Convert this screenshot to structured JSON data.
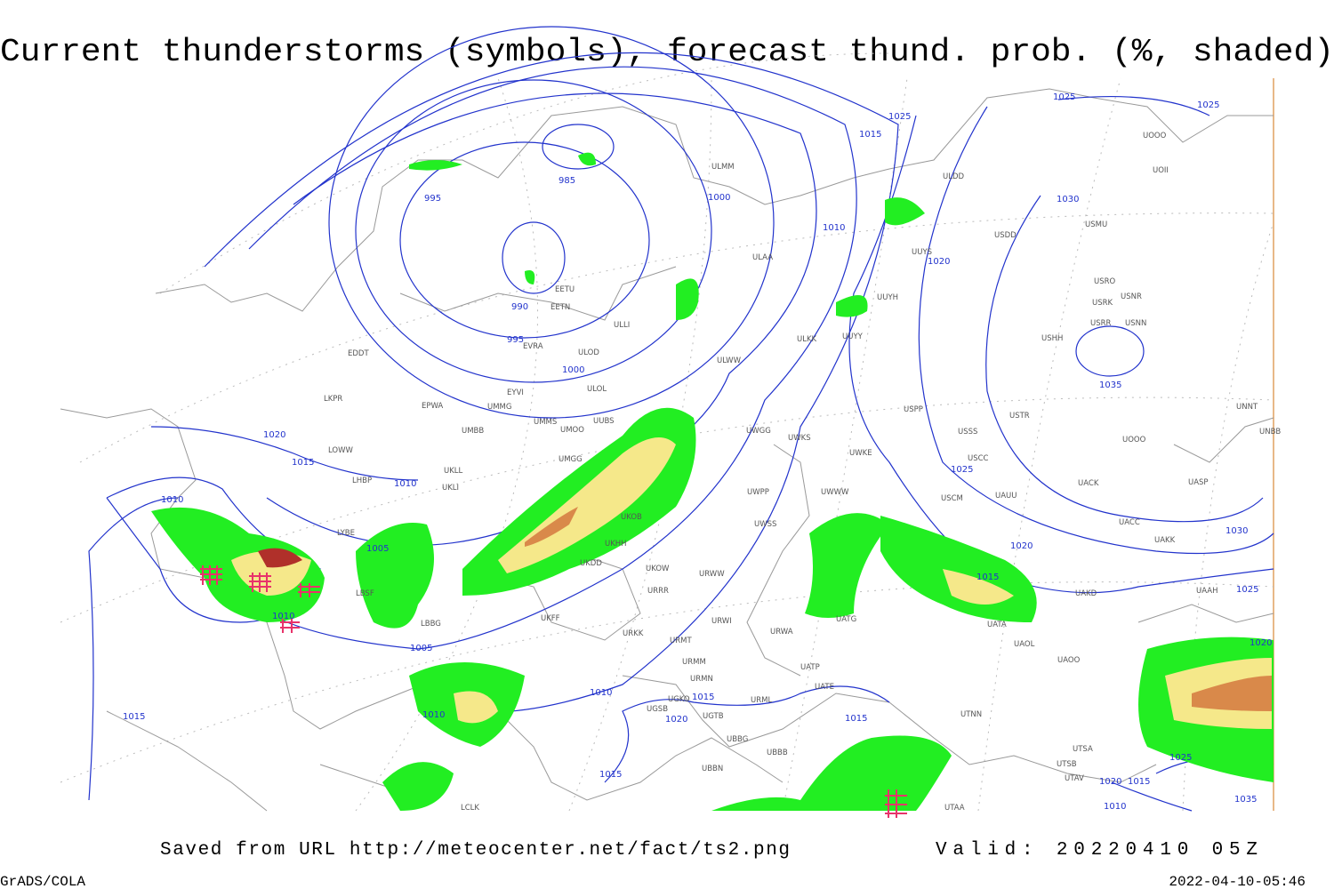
{
  "header": {
    "title": "Current thunderstorms (symbols), forecast thund. prob. (%, shaded)"
  },
  "footer": {
    "source": "Saved from URL http://meteocenter.net/fact/ts2.png",
    "valid": "Valid: 20220410 05Z",
    "credit": "GrADS/COLA",
    "timestamp": "2022-04-10-05:46"
  },
  "map": {
    "isobar_labels": [
      "985",
      "995",
      "990",
      "995",
      "1000",
      "1000",
      "1010",
      "1015",
      "1025",
      "1025",
      "1025",
      "1030",
      "1020",
      "1035",
      "1025",
      "1020",
      "1015",
      "1030",
      "1025",
      "1020",
      "1020",
      "1015",
      "1010",
      "1010",
      "1005",
      "1010",
      "1005",
      "1010",
      "1015",
      "1020",
      "1015",
      "1010",
      "1015",
      "1015",
      "1025",
      "1020",
      "1015",
      "1010",
      "1035"
    ],
    "stations": [
      "ULMM",
      "ULDD",
      "USDD",
      "USMU",
      "UOII",
      "UOOO",
      "ULAA",
      "UUYS",
      "EETU",
      "EETN",
      "UUYH",
      "USRO",
      "USRK",
      "USNR",
      "USRR",
      "USNN",
      "ULLI",
      "ULKK",
      "UUYY",
      "USHH",
      "EVRA",
      "ULOD",
      "EDDT",
      "ULWW",
      "ULOL",
      "EYVI",
      "UMMG",
      "EPWA",
      "LKPR",
      "UMMS",
      "UMOO",
      "UUBS",
      "UMBB",
      "USPP",
      "USTR",
      "UNNT",
      "UNBB",
      "UWGG",
      "UWKS",
      "USSS",
      "UOOO",
      "LOWW",
      "UKLL",
      "UKLI",
      "LHBP",
      "UMGG",
      "UWKE",
      "USCC",
      "UACC",
      "UASP",
      "UWPP",
      "UWWW",
      "USCM",
      "UAUU",
      "UACK",
      "UWSS",
      "UKOB",
      "UKHH",
      "LYBE",
      "UKDD",
      "UKOW",
      "URWW",
      "URRR",
      "UAKK",
      "LBSF",
      "UKFF",
      "URWI",
      "URWA",
      "UATG",
      "UATA",
      "UAOO",
      "UAOL",
      "UAKD",
      "UAAH",
      "LBBG",
      "URKK",
      "URMT",
      "URMM",
      "URMN",
      "UATP",
      "UATE",
      "UGKO",
      "URML",
      "UGTB",
      "UGSB",
      "UBBG",
      "UBBN",
      "UBBB",
      "UTNN",
      "UTSA",
      "UTSB",
      "UTAV",
      "UTAA",
      "LCLK"
    ]
  }
}
